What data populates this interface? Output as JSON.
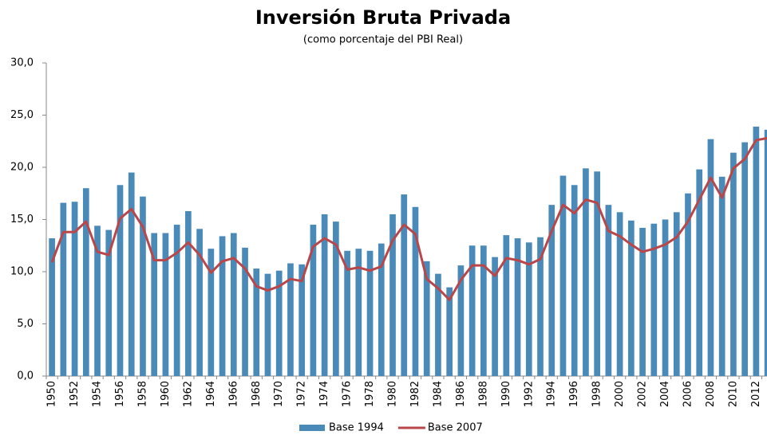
{
  "chart_data": {
    "type": "bar",
    "title": "Inversión Bruta Privada",
    "subtitle": "(como porcentaje del PBI Real)",
    "categories": [
      "1950",
      null,
      "1952",
      null,
      "1954",
      null,
      "1956",
      null,
      "1958",
      null,
      "1960",
      null,
      "1962",
      null,
      "1964",
      null,
      "1966",
      null,
      "1968",
      null,
      "1970",
      null,
      "1972",
      null,
      "1974",
      null,
      "1976",
      null,
      "1978",
      null,
      "1980",
      null,
      "1982",
      null,
      "1984",
      null,
      "1986",
      null,
      "1988",
      null,
      "1990",
      null,
      "1992",
      null,
      "1994",
      null,
      "1996",
      null,
      "1998",
      null,
      "2000",
      null,
      "2002",
      null,
      "2004",
      null,
      "2006",
      null,
      "2008",
      null,
      "2010",
      null,
      "2012",
      null
    ],
    "series": [
      {
        "name": "Base 1994",
        "type": "bar",
        "color": "#4a8ab8",
        "values": [
          13.2,
          16.6,
          16.7,
          18.0,
          14.4,
          14.0,
          18.3,
          19.5,
          17.2,
          13.7,
          13.7,
          14.5,
          15.8,
          14.1,
          12.2,
          13.4,
          13.7,
          12.3,
          10.3,
          9.8,
          10.1,
          10.8,
          10.7,
          14.5,
          15.5,
          14.8,
          12.0,
          12.2,
          12.0,
          12.7,
          15.5,
          17.4,
          16.2,
          11.0,
          9.8,
          8.5,
          10.6,
          12.5,
          12.5,
          11.4,
          13.5,
          13.2,
          12.8,
          13.3,
          16.4,
          19.2,
          18.3,
          19.9,
          19.6,
          16.4,
          15.7,
          14.9,
          14.2,
          14.6,
          15.0,
          15.7,
          17.5,
          19.8,
          22.7,
          19.1,
          21.4,
          22.4,
          23.9,
          23.6
        ]
      },
      {
        "name": "Base 2007",
        "type": "line",
        "color": "#b9474a",
        "values": [
          10.9,
          13.8,
          13.8,
          14.8,
          11.9,
          11.6,
          15.1,
          16.0,
          14.3,
          11.1,
          11.1,
          11.8,
          12.8,
          11.6,
          9.9,
          11.0,
          11.3,
          10.3,
          8.6,
          8.2,
          8.6,
          9.3,
          9.1,
          12.4,
          13.2,
          12.6,
          10.2,
          10.4,
          10.1,
          10.5,
          13.0,
          14.5,
          13.6,
          9.3,
          8.4,
          7.3,
          9.2,
          10.6,
          10.6,
          9.6,
          11.3,
          11.1,
          10.7,
          11.2,
          13.9,
          16.4,
          15.6,
          16.9,
          16.6,
          13.9,
          13.4,
          12.6,
          11.9,
          12.2,
          12.6,
          13.3,
          14.8,
          16.9,
          19.0,
          17.1,
          19.9,
          20.8,
          22.6,
          22.8
        ]
      }
    ],
    "ylim": [
      0,
      30
    ],
    "yticks": [
      {
        "value": 0,
        "label": "0,0"
      },
      {
        "value": 5,
        "label": "5,0"
      },
      {
        "value": 10,
        "label": "10,0"
      },
      {
        "value": 15,
        "label": "15,0"
      },
      {
        "value": 20,
        "label": "20,0"
      },
      {
        "value": 25,
        "label": "25,0"
      },
      {
        "value": 30,
        "label": "30,0"
      }
    ],
    "grid": false,
    "legend": "bottom"
  }
}
